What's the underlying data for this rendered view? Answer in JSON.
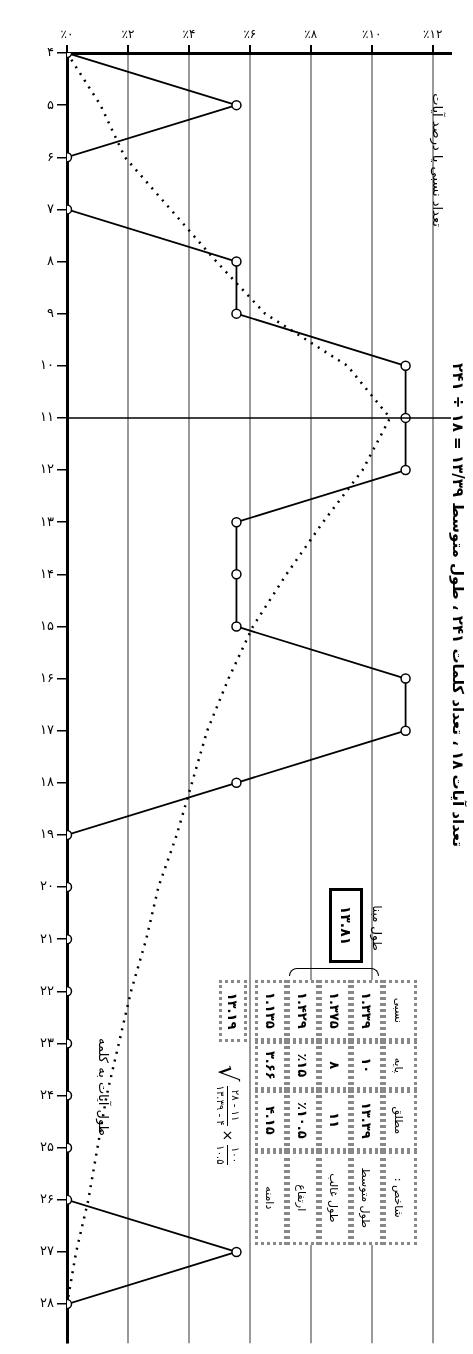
{
  "chart_data": {
    "type": "line",
    "title": "تعداد آیات ۱۸ ، تعداد کلمات ۲۴۱ ، طول متوسط ۱۳/۳۹ = ۱۸ ÷ ۲۴۱",
    "ylabel": "طول آیات به کلمه",
    "series": [
      {
        "color": "#000000",
        "marker": "circle",
        "line_style": "solid",
        "x": [
          0,
          5.56,
          0,
          0,
          5.56,
          5.56,
          11.11,
          11.11,
          11.11,
          5.56,
          5.56,
          5.56,
          11.11,
          11.11,
          5.56,
          0,
          0,
          0,
          0,
          0,
          0,
          0,
          0,
          5.56,
          0
        ],
        "values": [
          4,
          5,
          6,
          7,
          8,
          9,
          10,
          11,
          12,
          13,
          14,
          15,
          16,
          17,
          18,
          19,
          20,
          21,
          22,
          23,
          24,
          25,
          26,
          27,
          28
        ]
      },
      {
        "color": "#000000",
        "marker": "none",
        "line_style": "dotted",
        "x": [
          0,
          1.1,
          1.9,
          3.4,
          4.9,
          6.5,
          9.2,
          10.6,
          9.7,
          8.4,
          7.2,
          6.1,
          5.3,
          4.6,
          4.1,
          3.6,
          3.0,
          2.6,
          2.1,
          1.7,
          1.3,
          1.0,
          0.7,
          0.3,
          0.0
        ],
        "values": [
          4,
          5,
          6,
          7,
          8,
          9,
          10,
          11,
          12,
          13,
          14,
          15,
          16,
          17,
          18,
          19,
          20,
          21,
          22,
          23,
          24,
          25,
          26,
          27,
          28
        ]
      }
    ],
    "ylim": [
      28.75,
      4
    ],
    "yticks": [
      {
        "value": 4,
        "label": "۴"
      },
      {
        "value": 5,
        "label": "۵"
      },
      {
        "value": 6,
        "label": "۶"
      },
      {
        "value": 7,
        "label": "۷"
      },
      {
        "value": 8,
        "label": "۸"
      },
      {
        "value": 9,
        "label": "۹"
      },
      {
        "value": 10,
        "label": "۱۰"
      },
      {
        "value": 11,
        "label": "۱۱"
      },
      {
        "value": 12,
        "label": "۱۲"
      },
      {
        "value": 13,
        "label": "۱۳"
      },
      {
        "value": 14,
        "label": "۱۴"
      },
      {
        "value": 15,
        "label": "۱۵"
      },
      {
        "value": 16,
        "label": "۱۶"
      },
      {
        "value": 17,
        "label": "۱۷"
      },
      {
        "value": 18,
        "label": "۱۸"
      },
      {
        "value": 19,
        "label": "۱۹"
      },
      {
        "value": 20,
        "label": "۲۰"
      },
      {
        "value": 21,
        "label": "۲۱"
      },
      {
        "value": 22,
        "label": "۲۲"
      },
      {
        "value": 23,
        "label": "۲۳"
      },
      {
        "value": 24,
        "label": "۲۴"
      },
      {
        "value": 25,
        "label": "۲۵"
      },
      {
        "value": 26,
        "label": "۲۶"
      },
      {
        "value": 27,
        "label": "۲۷"
      },
      {
        "value": 28,
        "label": "۲۸"
      }
    ],
    "xlim": [
      0,
      12.6
    ],
    "xticks": [
      {
        "value": 0,
        "label": "٪۰"
      },
      {
        "value": 2,
        "label": "٪۲"
      },
      {
        "value": 4,
        "label": "٪۴"
      },
      {
        "value": 6,
        "label": "٪۶"
      },
      {
        "value": 8,
        "label": "٪۸"
      },
      {
        "value": 10,
        "label": "٪۱۰"
      },
      {
        "value": 12,
        "label": "٪۱۲"
      }
    ],
    "grid": "x",
    "ref_lines": [
      {
        "axis": "y",
        "value": 11,
        "color": "#000000"
      }
    ],
    "annotations": [
      "طول مبنا",
      "۱۳.۸۱",
      "شاخص :",
      "مطلق",
      "پایه",
      "نسبی",
      "طول متوسط",
      "طول غالب",
      "ارتفاع",
      "دامنه",
      "۱۳.۳۹",
      "۱۱",
      "٪۱۰.۵",
      "۴.۱۵",
      "۱۰",
      "۸",
      "٪۱۵",
      "۳.۶۶",
      "۱.۳۳۹",
      "۱.۳۷۵",
      "۱.۴۲۹",
      "۱.۱۳۵",
      "۱۳.۱۹",
      "√",
      "۲۸ - ۱۱",
      "۱۳.۳۹ - ۴",
      "×",
      "۱۰۰",
      "۱۰.۵",
      "تعداد نسبی یا درصد آیات"
    ]
  }
}
